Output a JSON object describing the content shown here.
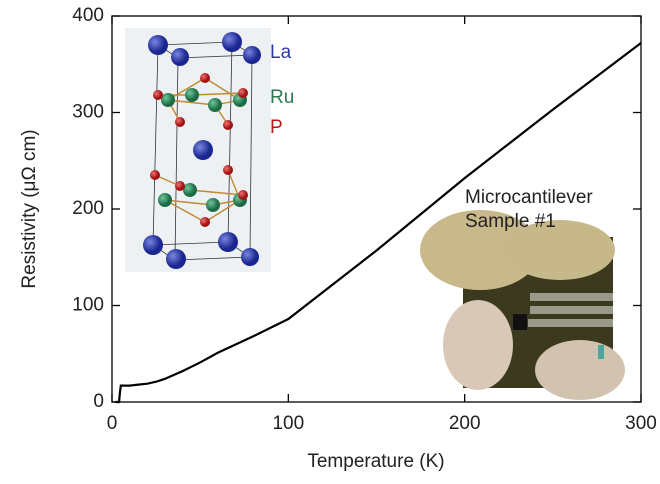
{
  "chart_data": {
    "type": "line",
    "xlabel": "Temperature (K)",
    "ylabel": "Resistivity (μΩ cm)",
    "x": [
      2,
      4,
      4.5,
      5,
      10,
      15,
      20,
      25,
      30,
      40,
      50,
      60,
      80,
      100,
      150,
      200,
      250,
      300
    ],
    "values": [
      0,
      0,
      10,
      17,
      17,
      18,
      19,
      21,
      24,
      32,
      41,
      51,
      68,
      86,
      157,
      232,
      303,
      372
    ],
    "color": "#000000",
    "xlim": [
      0,
      300
    ],
    "xticks": [
      0,
      100,
      200,
      300
    ],
    "ylim": [
      0,
      400
    ],
    "yticks": [
      0,
      100,
      200,
      300,
      400
    ],
    "annotations": {
      "crystal_labels": [
        "La",
        "Ru",
        "P"
      ],
      "photo_caption": [
        "Microcantilever",
        "Sample #1"
      ]
    }
  }
}
